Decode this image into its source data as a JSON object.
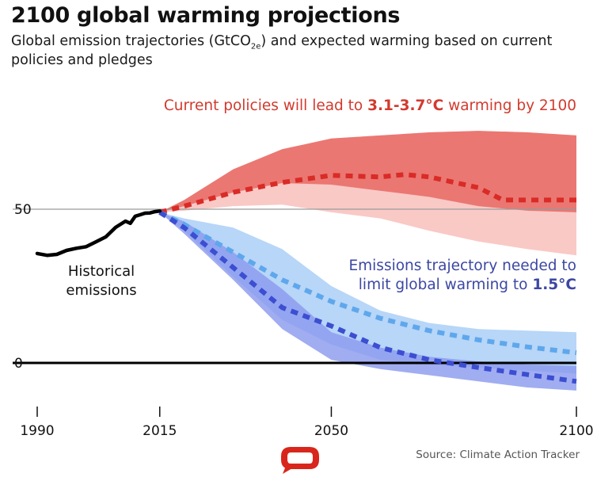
{
  "header": {
    "title": "2100 global warming projections",
    "subtitle_pre": "Global emission trajectories (GtCO",
    "subtitle_sub": "2e",
    "subtitle_post": ") and expected warming based on current policies and pledges"
  },
  "annotations": {
    "current_pre": "Current policies will lead to ",
    "current_bold": "3.1-3.7°C",
    "current_post": "  warming by 2100",
    "target_line1": "Emissions trajectory needed to",
    "target_line2_pre": "limit global warming to ",
    "target_line2_bold": "1.5°C",
    "historical_line1": "Historical",
    "historical_line2": "emissions"
  },
  "source": "Source: Climate Action Tracker",
  "logo_icon": "speech-bubble-logo-icon",
  "colors": {
    "current_band_outer": "#f9c9c6",
    "current_band_inner": "#e9706a",
    "current_line": "#d92b27",
    "pledge_band": "#afd1f7",
    "pledge_line": "#5fa7ec",
    "target_band": "#8a98ee",
    "target_line": "#3c4ed1",
    "historical": "#000000",
    "current_text": "#d23a2e",
    "target_text": "#3c47a3",
    "gridline": "#9a9a9a"
  },
  "chart_data": {
    "type": "area",
    "title": "2100 global warming projections",
    "xlabel": "",
    "ylabel": "",
    "xlim": [
      1990,
      2100
    ],
    "ylim": [
      -10,
      75
    ],
    "x_ticks": [
      1990,
      2015,
      2050,
      2100
    ],
    "x_tick_labels": [
      "1990",
      "2015",
      "2050",
      "2100"
    ],
    "y_ticks": [
      0,
      50
    ],
    "y_tick_labels": [
      "0",
      "50"
    ],
    "grid": false,
    "historical": {
      "name": "Historical emissions",
      "x": [
        1990,
        1992,
        1994,
        1996,
        1998,
        2000,
        2002,
        2004,
        2006,
        2008,
        2009,
        2010,
        2011,
        2012,
        2013,
        2014,
        2015
      ],
      "y": [
        35.6,
        35.0,
        35.3,
        36.6,
        37.3,
        37.8,
        39.4,
        41.0,
        44.1,
        46.1,
        45.4,
        47.7,
        48.2,
        48.7,
        48.8,
        49.2,
        49.4
      ]
    },
    "current_policies": {
      "band_outer": {
        "x": [
          2015,
          2020,
          2030,
          2040,
          2050,
          2060,
          2070,
          2080,
          2090,
          2100
        ],
        "upper": [
          49,
          53,
          63,
          69.5,
          73,
          74,
          75,
          75.5,
          75,
          74
        ],
        "lower": [
          49,
          49.5,
          51,
          51.5,
          49,
          47,
          43,
          39.5,
          37,
          35
        ]
      },
      "band_inner": {
        "x": [
          2015,
          2020,
          2030,
          2040,
          2050,
          2060,
          2070,
          2080,
          2090,
          2100
        ],
        "upper": [
          49,
          53,
          63,
          69.5,
          73,
          74,
          75,
          75.5,
          75,
          74
        ],
        "lower": [
          49,
          51,
          55.5,
          58.5,
          58,
          56,
          54,
          51,
          49.5,
          49
        ]
      },
      "median": {
        "x": [
          2015,
          2020,
          2030,
          2040,
          2050,
          2060,
          2065,
          2070,
          2080,
          2085,
          2090,
          2100
        ],
        "y": [
          49,
          51,
          55.5,
          58.7,
          61,
          60.5,
          61.3,
          60.5,
          57,
          53,
          53,
          53
        ]
      }
    },
    "target_1_5C": {
      "pledge_band": {
        "x": [
          2015,
          2020,
          2030,
          2040,
          2050,
          2060,
          2070,
          2080,
          2090,
          2100
        ],
        "upper": [
          49,
          47,
          44,
          37,
          25,
          17,
          13,
          11,
          10.5,
          10
        ],
        "lower": [
          49,
          43,
          28,
          14,
          6,
          1,
          -0.5,
          -1.5,
          -2.5,
          -3.5
        ]
      },
      "pledge_median": {
        "x": [
          2015,
          2020,
          2030,
          2040,
          2050,
          2060,
          2070,
          2080,
          2090,
          2100
        ],
        "y": [
          49,
          45,
          36,
          27,
          20,
          14.5,
          10.5,
          7.5,
          5.2,
          3.3
        ]
      },
      "target_band": {
        "x": [
          2015,
          2020,
          2030,
          2040,
          2050,
          2060,
          2070,
          2080,
          2090,
          2100
        ],
        "upper": [
          49,
          46,
          36,
          24,
          10,
          5,
          2,
          0.5,
          -0.5,
          -1
        ],
        "lower": [
          49,
          42,
          27,
          11,
          1,
          -2,
          -4,
          -6,
          -8,
          -9
        ]
      },
      "target_median": {
        "x": [
          2015,
          2020,
          2030,
          2040,
          2050,
          2060,
          2070,
          2080,
          2090,
          2100
        ],
        "y": [
          49,
          44,
          31,
          18,
          12,
          5,
          1,
          -1.5,
          -3.8,
          -6
        ]
      }
    }
  }
}
